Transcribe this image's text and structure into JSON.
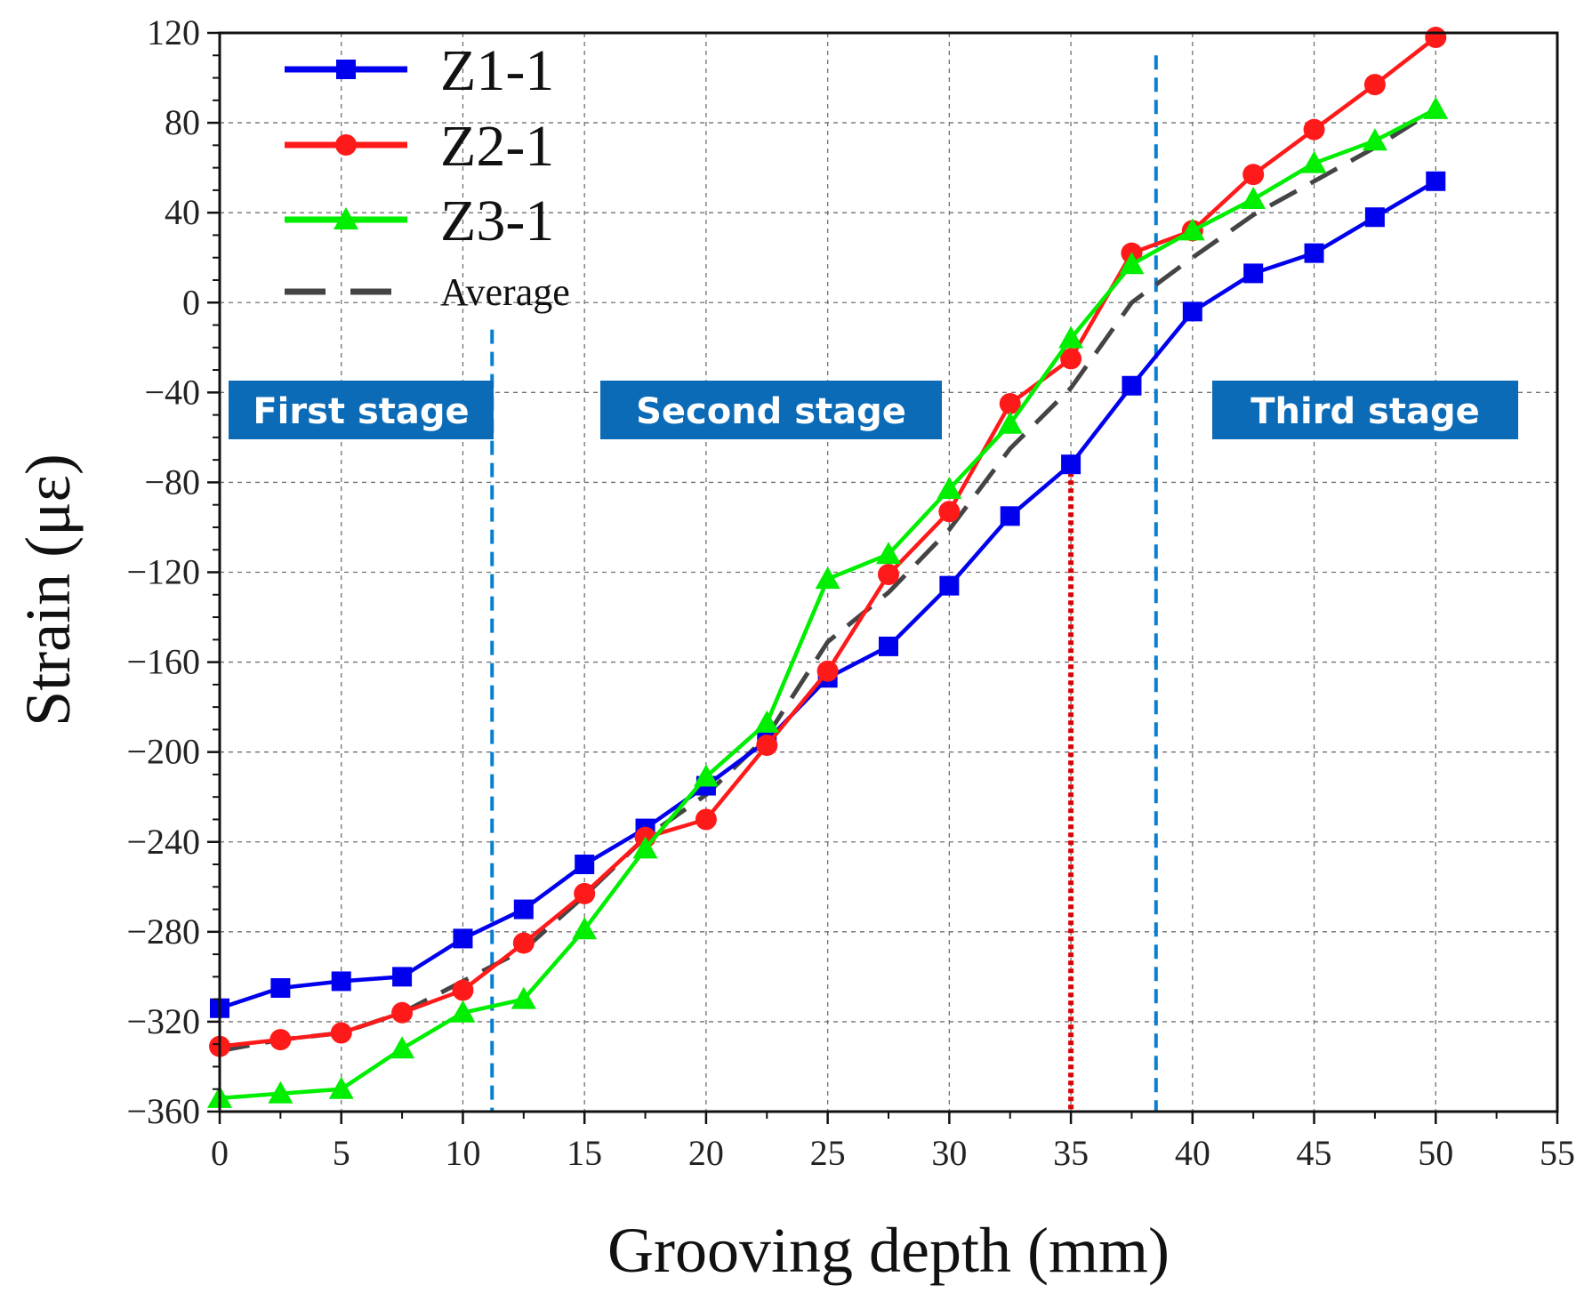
{
  "chart_data": {
    "type": "line",
    "title": "",
    "xlabel": "Grooving depth (mm)",
    "ylabel": "Strain (με)",
    "xlim": [
      0,
      55
    ],
    "ylim": [
      -360,
      120
    ],
    "xticks": [
      0,
      5,
      10,
      15,
      20,
      25,
      30,
      35,
      40,
      45,
      50,
      55
    ],
    "yticks": [
      -360,
      -320,
      -280,
      -240,
      -200,
      -160,
      -120,
      -80,
      -40,
      0,
      40,
      80,
      120
    ],
    "grid": true,
    "legend_position": "top-left",
    "x": [
      0,
      2.5,
      5,
      7.5,
      10,
      12.5,
      15,
      17.5,
      20,
      22.5,
      25,
      27.5,
      30,
      32.5,
      35,
      37.5,
      40,
      42.5,
      45,
      47.5,
      50
    ],
    "series": [
      {
        "name": "Z1-1",
        "color": "#0000ee",
        "marker": "square",
        "values": [
          -314,
          -305,
          -302,
          -300,
          -283,
          -270,
          -250,
          -234,
          -215,
          -195,
          -167,
          -153,
          -126,
          -95,
          -72,
          -37,
          -4,
          13,
          22,
          38,
          54
        ]
      },
      {
        "name": "Z2-1",
        "color": "#ff1a1a",
        "marker": "circle",
        "values": [
          -331,
          -328,
          -325,
          -316,
          -306,
          -285,
          -263,
          -238,
          -230,
          -197,
          -164,
          -121,
          -93,
          -45,
          -25,
          22,
          32,
          57,
          77,
          97,
          118
        ]
      },
      {
        "name": "Z3-1",
        "color": "#00ee00",
        "marker": "triangle",
        "values": [
          -354,
          -352,
          -350,
          -332,
          -316,
          -310,
          -279,
          -243,
          -211,
          -187,
          -123,
          -112,
          -83,
          -54,
          -16,
          17,
          32,
          46,
          62,
          72,
          86
        ]
      },
      {
        "name": "Average",
        "color": "#444444",
        "marker": "none",
        "dashed": true,
        "values": [
          -333,
          -328,
          -325,
          -316,
          -302,
          -288,
          -264,
          -238,
          -219,
          -193,
          -151,
          -129,
          -101,
          -65,
          -38,
          0,
          20,
          39,
          54,
          69,
          86
        ]
      }
    ],
    "reference_lines": [
      {
        "x": 11.2,
        "color": "#0a7fd0",
        "style": "dashed",
        "y_top": -12
      },
      {
        "x": 35,
        "color": "#dd0000",
        "style": "dotted",
        "y_top": -72
      },
      {
        "x": 38.5,
        "color": "#0a7fd0",
        "style": "dashed",
        "y_top": 110
      }
    ],
    "annotations": [
      {
        "text": "First stage",
        "color": "#0c6bb7"
      },
      {
        "text": "Second stage",
        "color": "#0c6bb7"
      },
      {
        "text": "Third stage",
        "color": "#0c6bb7"
      }
    ]
  }
}
